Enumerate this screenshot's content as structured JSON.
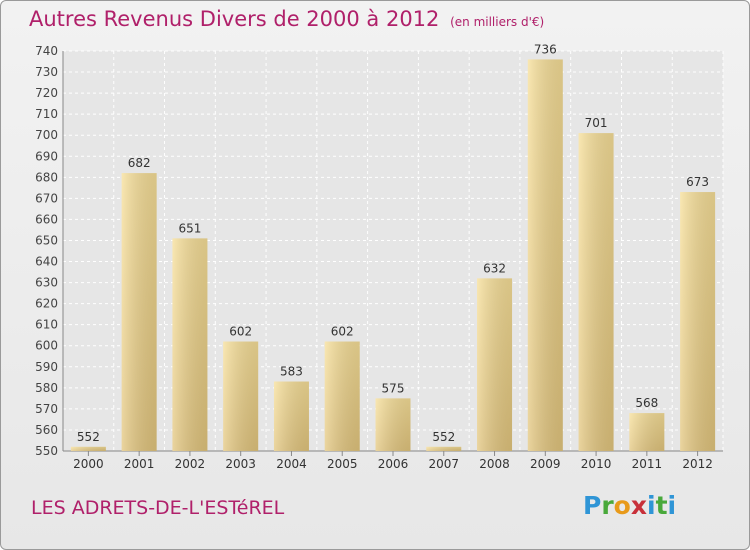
{
  "chart_data": {
    "type": "bar",
    "title": "Autres Revenus Divers de 2000 à 2012",
    "subtitle": "(en milliers d'€)",
    "categories": [
      "2000",
      "2001",
      "2002",
      "2003",
      "2004",
      "2005",
      "2006",
      "2007",
      "2008",
      "2009",
      "2010",
      "2011",
      "2012"
    ],
    "values": [
      552,
      682,
      651,
      602,
      583,
      602,
      575,
      552,
      632,
      736,
      701,
      568,
      673
    ],
    "ylim": [
      550,
      740
    ],
    "yticks": [
      550,
      560,
      570,
      580,
      590,
      600,
      610,
      620,
      630,
      640,
      650,
      660,
      670,
      680,
      690,
      700,
      710,
      720,
      730,
      740
    ],
    "grid": true,
    "bar_color": "#e3c67e",
    "title_color": "#b0206a"
  },
  "footer": {
    "location": "LES ADRETS-DE-L'ESTéREL",
    "logo": "Proxiti"
  }
}
